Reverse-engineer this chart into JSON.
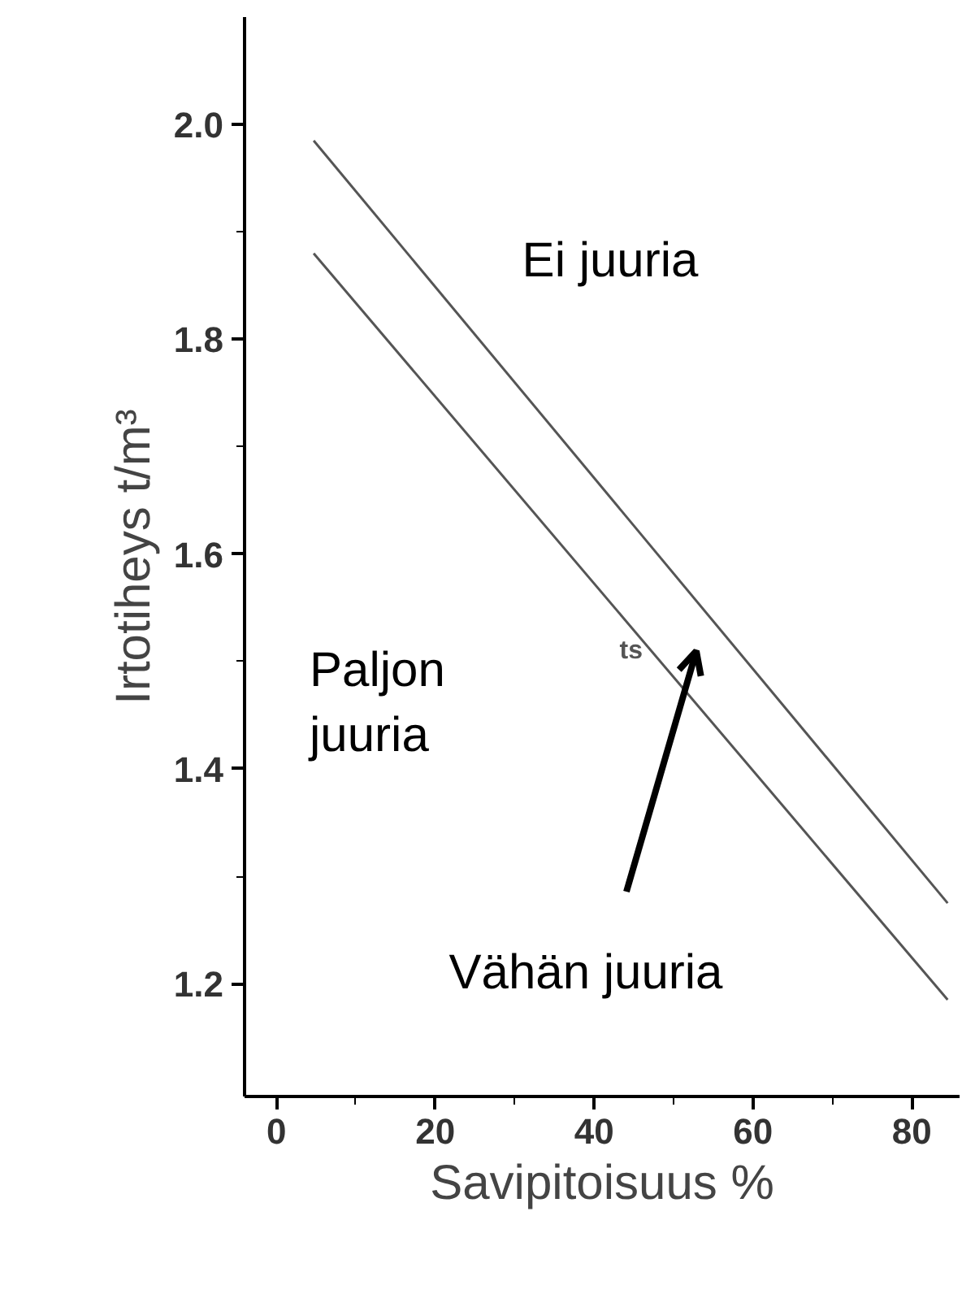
{
  "chart_data": {
    "type": "line",
    "xlabel": "Savipitoisuus %",
    "ylabel": "Irtotiheys t/m³",
    "series": [
      {
        "values": [
          1.985,
          1.275
        ],
        "color": "#555555"
      },
      {
        "values": [
          1.88,
          1.185
        ],
        "color": "#555555"
      }
    ],
    "x": [
      4.7,
      84.5
    ],
    "xlim": [
      -4,
      86
    ],
    "ylim": [
      1.095,
      2.1
    ],
    "xticks": [
      0,
      20,
      40,
      60,
      80
    ],
    "yticks": [
      {
        "value": 1.2,
        "label": "1.2"
      },
      {
        "value": 1.4,
        "label": "1.4"
      },
      {
        "value": 1.6,
        "label": "1.6"
      },
      {
        "value": 1.8,
        "label": "1.8"
      },
      {
        "value": 2.0,
        "label": "2.0"
      }
    ],
    "annotations": [
      "Ei juuria",
      "Paljon\njuuria",
      "Vähän juuria",
      "ts"
    ],
    "grid": false,
    "marker": "none",
    "line_style": "solid"
  }
}
